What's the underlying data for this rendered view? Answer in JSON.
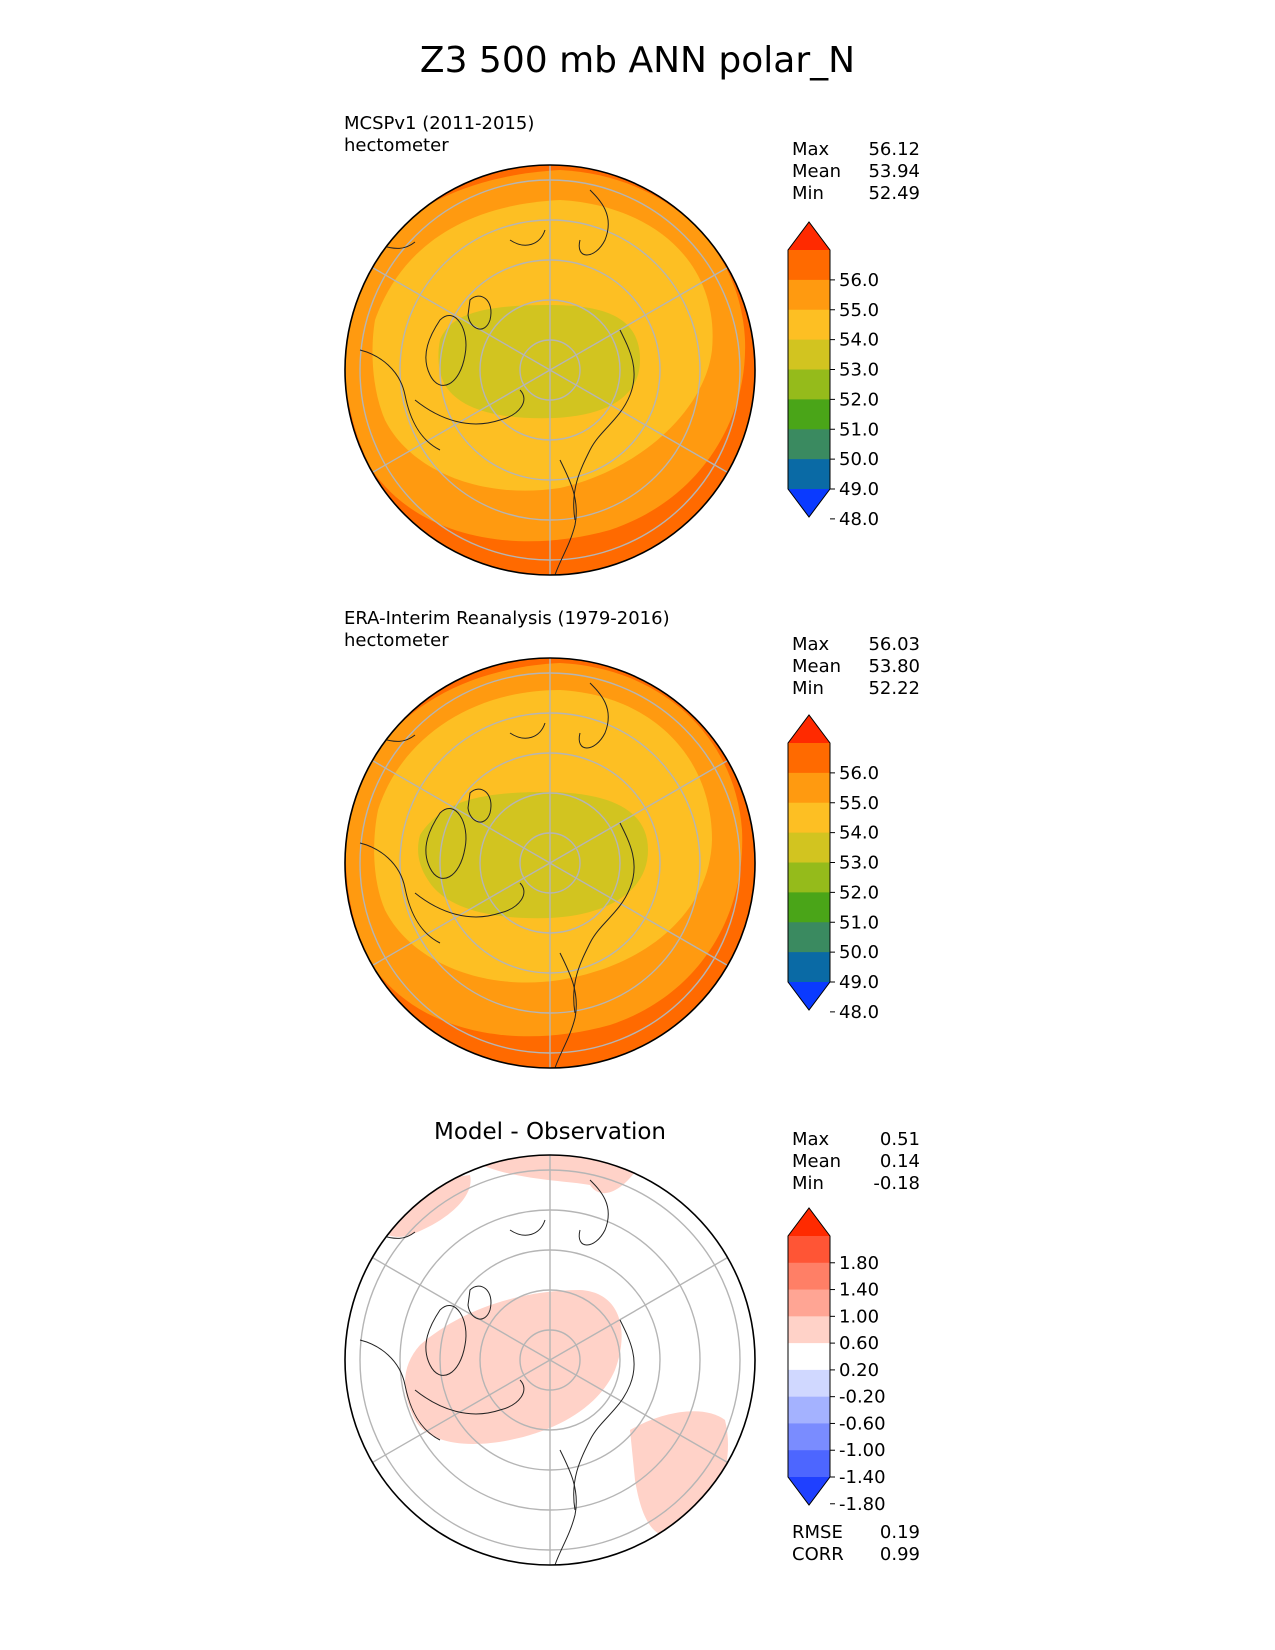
{
  "title": "Z3 500 mb ANN polar_N",
  "panels": [
    {
      "label": "MCSPv1 (2011-2015)",
      "units": "hectometer",
      "stats": [
        [
          "Max",
          "56.12"
        ],
        [
          "Mean",
          "53.94"
        ],
        [
          "Min",
          "52.49"
        ]
      ],
      "colorbar": {
        "ticks": [
          "56.0",
          "55.0",
          "54.0",
          "53.0",
          "52.0",
          "51.0",
          "50.0",
          "49.0",
          "48.0"
        ],
        "colors": [
          "#ff2a00",
          "#ff6a00",
          "#ff9a10",
          "#fdbf23",
          "#d2c420",
          "#95bb1b",
          "#4aa518",
          "#3a8a60",
          "#0a6aa5",
          "#0a3aff"
        ]
      }
    },
    {
      "label": "ERA-Interim Reanalysis (1979-2016)",
      "units": "hectometer",
      "stats": [
        [
          "Max",
          "56.03"
        ],
        [
          "Mean",
          "53.80"
        ],
        [
          "Min",
          "52.22"
        ]
      ],
      "colorbar": {
        "ticks": [
          "56.0",
          "55.0",
          "54.0",
          "53.0",
          "52.0",
          "51.0",
          "50.0",
          "49.0",
          "48.0"
        ],
        "colors": [
          "#ff2a00",
          "#ff6a00",
          "#ff9a10",
          "#fdbf23",
          "#d2c420",
          "#95bb1b",
          "#4aa518",
          "#3a8a60",
          "#0a6aa5",
          "#0a3aff"
        ]
      }
    },
    {
      "label": "Model - Observation",
      "stats": [
        [
          "Max",
          "0.51"
        ],
        [
          "Mean",
          "0.14"
        ],
        [
          "Min",
          "-0.18"
        ]
      ],
      "extra_stats": [
        [
          "RMSE",
          "0.19"
        ],
        [
          "CORR",
          "0.99"
        ]
      ],
      "colorbar": {
        "ticks": [
          "1.80",
          "1.40",
          "1.00",
          "0.60",
          "0.20",
          "-0.20",
          "-0.60",
          "-1.00",
          "-1.40",
          "-1.80"
        ],
        "colors": [
          "#ff2a00",
          "#ff5535",
          "#ff7f66",
          "#ffa594",
          "#ffd2c8",
          "#ffffff",
          "#d0d8ff",
          "#a4b2ff",
          "#7a8cff",
          "#4d66ff",
          "#1f40ff"
        ]
      }
    }
  ]
}
